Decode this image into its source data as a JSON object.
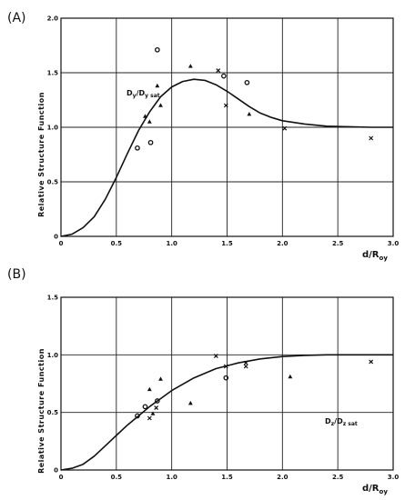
{
  "chart_data": [
    {
      "type": "scatter",
      "panel_label": "(A)",
      "ylabel": "Relative Structure Function",
      "xlabel": {
        "main": "d/R",
        "sub": "oy"
      },
      "curve_label": {
        "main": "D",
        "sub": "y",
        "mid": "/D",
        "sub2": "y sat"
      },
      "xlim": [
        0,
        3.0
      ],
      "ylim": [
        0,
        2.0
      ],
      "xticks": [
        "0",
        "0.5",
        "1.0",
        "1.5",
        "2.0",
        "2.5",
        "3.0"
      ],
      "yticks": [
        "0",
        "0.5",
        "1.0",
        "1.5",
        "2.0"
      ],
      "grid": true,
      "curve": {
        "x": [
          0,
          0.1,
          0.2,
          0.3,
          0.4,
          0.5,
          0.6,
          0.7,
          0.8,
          0.9,
          1.0,
          1.1,
          1.2,
          1.3,
          1.4,
          1.5,
          1.6,
          1.7,
          1.8,
          1.9,
          2.0,
          2.2,
          2.4,
          2.6,
          2.8,
          3.0
        ],
        "y": [
          0,
          0.02,
          0.08,
          0.18,
          0.34,
          0.54,
          0.76,
          0.97,
          1.14,
          1.28,
          1.37,
          1.42,
          1.44,
          1.43,
          1.39,
          1.33,
          1.26,
          1.19,
          1.13,
          1.09,
          1.06,
          1.03,
          1.01,
          1.005,
          1.0,
          1.0
        ]
      },
      "points": [
        {
          "marker": "circle",
          "x": 0.87,
          "y": 1.71
        },
        {
          "marker": "circle",
          "x": 0.69,
          "y": 0.81
        },
        {
          "marker": "circle",
          "x": 0.81,
          "y": 0.86
        },
        {
          "marker": "circle",
          "x": 1.47,
          "y": 1.47
        },
        {
          "marker": "circle",
          "x": 1.68,
          "y": 1.41
        },
        {
          "marker": "triangle",
          "x": 0.76,
          "y": 1.1
        },
        {
          "marker": "triangle",
          "x": 0.8,
          "y": 1.05
        },
        {
          "marker": "triangle",
          "x": 0.87,
          "y": 1.38
        },
        {
          "marker": "triangle",
          "x": 0.9,
          "y": 1.2
        },
        {
          "marker": "triangle",
          "x": 1.17,
          "y": 1.56
        },
        {
          "marker": "triangle",
          "x": 1.7,
          "y": 1.12
        },
        {
          "marker": "cross",
          "x": 1.42,
          "y": 1.52
        },
        {
          "marker": "cross",
          "x": 1.49,
          "y": 1.2
        },
        {
          "marker": "cross",
          "x": 2.02,
          "y": 0.99
        },
        {
          "marker": "cross",
          "x": 2.8,
          "y": 0.9
        }
      ]
    },
    {
      "type": "scatter",
      "panel_label": "(B)",
      "ylabel": "Relative Structure Function",
      "xlabel": {
        "main": "d/R",
        "sub": "oy"
      },
      "curve_label": {
        "main": "D",
        "sub": "z",
        "mid": "/D",
        "sub2": "z sat"
      },
      "xlim": [
        0,
        3.0
      ],
      "ylim": [
        0,
        1.5
      ],
      "xticks": [
        "0",
        "0.5",
        "1.0",
        "1.5",
        "2.0",
        "2.5",
        "3.0"
      ],
      "yticks": [
        "0",
        "0.5",
        "1.0",
        "1.5"
      ],
      "grid": true,
      "curve": {
        "x": [
          0,
          0.1,
          0.2,
          0.3,
          0.4,
          0.5,
          0.6,
          0.7,
          0.8,
          0.9,
          1.0,
          1.2,
          1.4,
          1.6,
          1.8,
          2.0,
          2.2,
          2.4,
          2.6,
          2.8,
          3.0
        ],
        "y": [
          0,
          0.015,
          0.05,
          0.12,
          0.21,
          0.3,
          0.39,
          0.47,
          0.55,
          0.62,
          0.69,
          0.8,
          0.88,
          0.93,
          0.965,
          0.985,
          0.995,
          1.0,
          1.0,
          1.0,
          1.0
        ]
      },
      "points": [
        {
          "marker": "circle",
          "x": 0.69,
          "y": 0.47
        },
        {
          "marker": "circle",
          "x": 0.76,
          "y": 0.55
        },
        {
          "marker": "circle",
          "x": 0.87,
          "y": 0.6
        },
        {
          "marker": "circle",
          "x": 1.49,
          "y": 0.8
        },
        {
          "marker": "triangle",
          "x": 0.8,
          "y": 0.7
        },
        {
          "marker": "triangle",
          "x": 0.9,
          "y": 0.79
        },
        {
          "marker": "triangle",
          "x": 0.83,
          "y": 0.49
        },
        {
          "marker": "triangle",
          "x": 1.17,
          "y": 0.58
        },
        {
          "marker": "triangle",
          "x": 2.07,
          "y": 0.81
        },
        {
          "marker": "cross",
          "x": 0.8,
          "y": 0.45
        },
        {
          "marker": "cross",
          "x": 0.86,
          "y": 0.54
        },
        {
          "marker": "cross",
          "x": 1.4,
          "y": 0.99
        },
        {
          "marker": "cross",
          "x": 1.49,
          "y": 0.9
        },
        {
          "marker": "cross",
          "x": 1.67,
          "y": 0.9
        },
        {
          "marker": "cross",
          "x": 1.67,
          "y": 0.93
        },
        {
          "marker": "cross",
          "x": 2.8,
          "y": 0.94
        }
      ]
    }
  ]
}
